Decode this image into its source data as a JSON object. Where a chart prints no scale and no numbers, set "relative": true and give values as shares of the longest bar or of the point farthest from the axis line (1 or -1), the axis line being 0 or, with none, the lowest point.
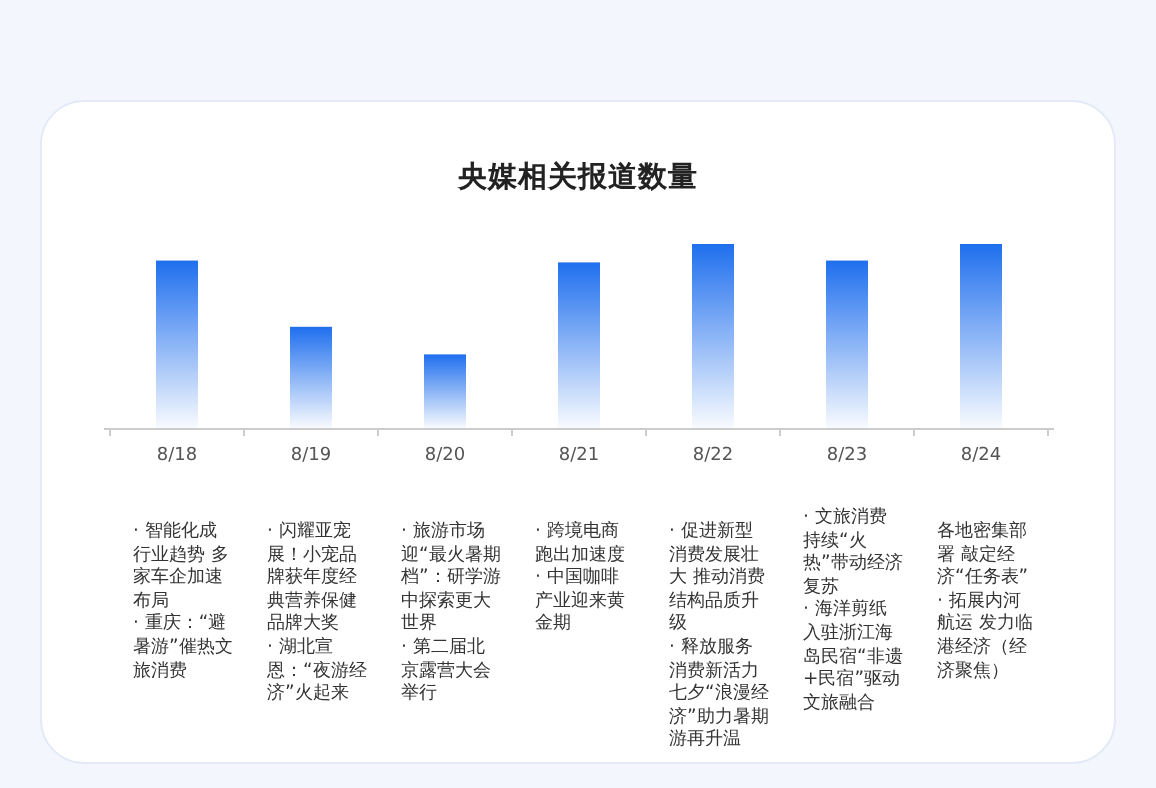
{
  "chart_data": {
    "type": "bar",
    "title": "央媒相关报道数量",
    "relative": true,
    "color": "#1f6fee",
    "categories": [
      "8/18",
      "8/19",
      "8/20",
      "8/21",
      "8/22",
      "8/23",
      "8/24"
    ],
    "values": [
      0.91,
      0.55,
      0.4,
      0.9,
      1,
      0.91,
      1
    ],
    "annotations": [
      "· 智能化成行业趋势 多家车企加速布局\n· 重庆：“避暑游”催热文旅消费",
      "· 闪耀亚宠展！小宠品牌获年度经典营养保健品牌大奖\n· 湖北宣恩：“夜游经济”火起来",
      "· 旅游市场迎“最火暑期档”：研学游中探索更大世界\n· 第二届北京露营大会举行",
      "· 跨境电商跑出加速度\n· 中国咖啡产业迎来黄金期",
      "· 促进新型消费发展壮大 推动消费结构品质升级\n· 释放服务消费新活力七夕“浪漫经济”助力暑期游再升温",
      "· 文旅消费持续“火热”带动经济复苏\n· 海洋剪纸入驻浙江海岛民宿“非遗+民宿”驱动文旅融合",
      "各地密集部署 敲定经济“任务表”\n· 拓展内河航运 发力临港经济（经济聚焦）"
    ]
  }
}
